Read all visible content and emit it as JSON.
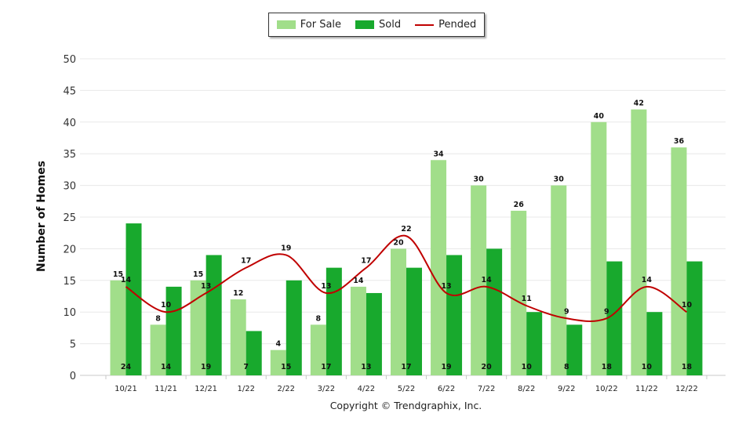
{
  "chart_data": {
    "type": "bar",
    "title": "",
    "xlabel": "",
    "ylabel": "Number of Homes",
    "ylim": [
      0,
      50
    ],
    "yticks": [
      0,
      5,
      10,
      15,
      20,
      25,
      30,
      35,
      40,
      45,
      50
    ],
    "categories": [
      "10/21",
      "11/21",
      "12/21",
      "1/22",
      "2/22",
      "3/22",
      "4/22",
      "5/22",
      "6/22",
      "7/22",
      "8/22",
      "9/22",
      "10/22",
      "11/22",
      "12/22"
    ],
    "series": [
      {
        "name": "For Sale",
        "type": "bar",
        "color": "#a1de8a",
        "values": [
          15,
          8,
          15,
          12,
          4,
          8,
          14,
          20,
          34,
          30,
          26,
          30,
          40,
          42,
          36
        ]
      },
      {
        "name": "Sold",
        "type": "bar",
        "color": "#18a92d",
        "values": [
          24,
          14,
          19,
          7,
          15,
          17,
          13,
          17,
          19,
          20,
          10,
          8,
          18,
          10,
          18
        ]
      },
      {
        "name": "Pended",
        "type": "line",
        "color": "#c00000",
        "values": [
          14,
          10,
          13,
          17,
          19,
          13,
          17,
          22,
          13,
          14,
          11,
          9,
          9,
          14,
          10
        ]
      }
    ],
    "legend": {
      "position": "top-center",
      "labels": [
        "For Sale",
        "Sold",
        "Pended"
      ]
    },
    "copyright": "Copyright © Trendgraphix, Inc."
  }
}
